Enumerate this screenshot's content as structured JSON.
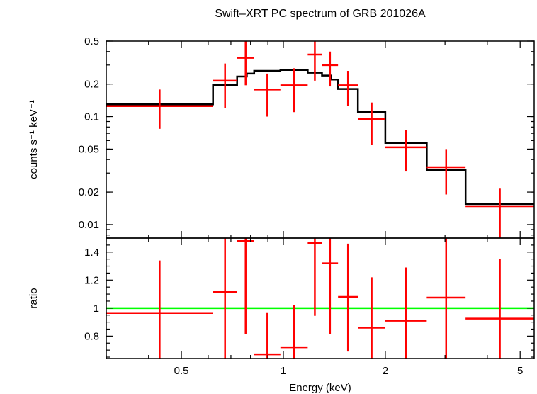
{
  "chart_data": [
    {
      "type": "line",
      "title": "Swift–XRT PC spectrum of GRB 201026A",
      "ylabel": "counts s⁻¹ keV⁻¹",
      "xlabel": "",
      "x_scale": "log",
      "y_scale": "log",
      "xlim": [
        0.3,
        5.5
      ],
      "ylim": [
        0.0075,
        0.5
      ],
      "yticks": [
        0.01,
        0.02,
        0.05,
        0.1,
        0.2,
        0.5
      ],
      "ytick_labels": [
        "0.01",
        "0.02",
        "0.05",
        "0.1",
        "0.2",
        "0.5"
      ],
      "data_color": "#ff0000",
      "model_color": "#000000",
      "data": [
        {
          "x_lo": 0.3,
          "x_hi": 0.62,
          "y": 0.125,
          "y_lo": 0.077,
          "y_hi": 0.178
        },
        {
          "x_lo": 0.62,
          "x_hi": 0.73,
          "y": 0.215,
          "y_lo": 0.12,
          "y_hi": 0.31
        },
        {
          "x_lo": 0.73,
          "x_hi": 0.82,
          "y": 0.35,
          "y_lo": 0.195,
          "y_hi": 0.5
        },
        {
          "x_lo": 0.82,
          "x_hi": 0.98,
          "y": 0.178,
          "y_lo": 0.1,
          "y_hi": 0.25
        },
        {
          "x_lo": 0.98,
          "x_hi": 1.18,
          "y": 0.195,
          "y_lo": 0.11,
          "y_hi": 0.28
        },
        {
          "x_lo": 1.18,
          "x_hi": 1.3,
          "y": 0.375,
          "y_lo": 0.215,
          "y_hi": 0.5
        },
        {
          "x_lo": 1.3,
          "x_hi": 1.45,
          "y": 0.3,
          "y_lo": 0.19,
          "y_hi": 0.4
        },
        {
          "x_lo": 1.45,
          "x_hi": 1.66,
          "y": 0.195,
          "y_lo": 0.125,
          "y_hi": 0.265
        },
        {
          "x_lo": 1.66,
          "x_hi": 2.0,
          "y": 0.095,
          "y_lo": 0.055,
          "y_hi": 0.135
        },
        {
          "x_lo": 2.0,
          "x_hi": 2.65,
          "y": 0.052,
          "y_lo": 0.031,
          "y_hi": 0.075
        },
        {
          "x_lo": 2.65,
          "x_hi": 3.45,
          "y": 0.034,
          "y_lo": 0.019,
          "y_hi": 0.05
        },
        {
          "x_lo": 3.45,
          "x_hi": 5.5,
          "y": 0.0148,
          "y_lo": 0.0075,
          "y_hi": 0.0215
        }
      ],
      "model": [
        {
          "x_lo": 0.3,
          "x_hi": 0.62,
          "y": 0.13
        },
        {
          "x_lo": 0.62,
          "x_hi": 0.73,
          "y": 0.197
        },
        {
          "x_lo": 0.73,
          "x_hi": 0.78,
          "y": 0.235
        },
        {
          "x_lo": 0.78,
          "x_hi": 0.82,
          "y": 0.25
        },
        {
          "x_lo": 0.82,
          "x_hi": 0.98,
          "y": 0.265
        },
        {
          "x_lo": 0.98,
          "x_hi": 1.18,
          "y": 0.27
        },
        {
          "x_lo": 1.18,
          "x_hi": 1.3,
          "y": 0.255
        },
        {
          "x_lo": 1.3,
          "x_hi": 1.38,
          "y": 0.24
        },
        {
          "x_lo": 1.38,
          "x_hi": 1.45,
          "y": 0.22
        },
        {
          "x_lo": 1.45,
          "x_hi": 1.66,
          "y": 0.18
        },
        {
          "x_lo": 1.66,
          "x_hi": 2.0,
          "y": 0.11
        },
        {
          "x_lo": 2.0,
          "x_hi": 2.65,
          "y": 0.057
        },
        {
          "x_lo": 2.65,
          "x_hi": 3.45,
          "y": 0.032
        },
        {
          "x_lo": 3.45,
          "x_hi": 5.5,
          "y": 0.0155
        }
      ]
    },
    {
      "type": "scatter",
      "title": "",
      "ylabel": "ratio",
      "xlabel": "Energy (keV)",
      "x_scale": "log",
      "y_scale": "linear",
      "xlim": [
        0.3,
        5.5
      ],
      "ylim": [
        0.64,
        1.5
      ],
      "xticks": [
        0.5,
        1,
        2,
        5
      ],
      "xtick_labels": [
        "0.5",
        "1",
        "2",
        "5"
      ],
      "yticks": [
        0.8,
        1.0,
        1.2,
        1.4
      ],
      "ytick_labels": [
        "0.8",
        "1",
        "1.2",
        "1.4"
      ],
      "reference_line": {
        "y": 1.0,
        "color": "#00ff00"
      },
      "data_color": "#ff0000",
      "data": [
        {
          "x_lo": 0.3,
          "x_hi": 0.62,
          "y": 0.965,
          "y_lo": 0.59,
          "y_hi": 1.34
        },
        {
          "x_lo": 0.62,
          "x_hi": 0.73,
          "y": 1.115,
          "y_lo": 0.62,
          "y_hi": 1.6
        },
        {
          "x_lo": 0.73,
          "x_hi": 0.82,
          "y": 1.48,
          "y_lo": 0.815,
          "y_hi": 2.1
        },
        {
          "x_lo": 0.82,
          "x_hi": 0.98,
          "y": 0.67,
          "y_lo": 0.38,
          "y_hi": 0.97
        },
        {
          "x_lo": 0.98,
          "x_hi": 1.18,
          "y": 0.72,
          "y_lo": 0.41,
          "y_hi": 1.02
        },
        {
          "x_lo": 1.18,
          "x_hi": 1.3,
          "y": 1.465,
          "y_lo": 0.945,
          "y_hi": 1.98
        },
        {
          "x_lo": 1.3,
          "x_hi": 1.45,
          "y": 1.32,
          "y_lo": 0.815,
          "y_hi": 1.82
        },
        {
          "x_lo": 1.45,
          "x_hi": 1.66,
          "y": 1.08,
          "y_lo": 0.69,
          "y_hi": 1.46
        },
        {
          "x_lo": 1.66,
          "x_hi": 2.0,
          "y": 0.86,
          "y_lo": 0.5,
          "y_hi": 1.22
        },
        {
          "x_lo": 2.0,
          "x_hi": 2.65,
          "y": 0.91,
          "y_lo": 0.52,
          "y_hi": 1.29
        },
        {
          "x_lo": 2.65,
          "x_hi": 3.45,
          "y": 1.075,
          "y_lo": 0.58,
          "y_hi": 1.57
        },
        {
          "x_lo": 3.45,
          "x_hi": 5.5,
          "y": 0.925,
          "y_lo": 0.5,
          "y_hi": 1.35
        }
      ]
    }
  ]
}
